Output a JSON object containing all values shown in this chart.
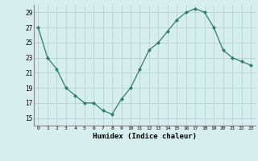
{
  "x": [
    0,
    1,
    2,
    3,
    4,
    5,
    6,
    7,
    8,
    9,
    10,
    11,
    12,
    13,
    14,
    15,
    16,
    17,
    18,
    19,
    20,
    21,
    22,
    23
  ],
  "y": [
    27,
    23,
    21.5,
    19,
    18,
    17,
    17,
    16,
    15.5,
    17.5,
    19,
    21.5,
    24,
    25,
    26.5,
    28,
    29,
    29.5,
    29,
    27,
    24,
    23,
    22.5,
    22
  ],
  "line_color": "#2e7d6e",
  "marker": "D",
  "marker_size": 2.0,
  "bg_color": "#d6eeee",
  "grid_color": "#b0cccc",
  "xlabel": "Humidex (Indice chaleur)",
  "ylim": [
    14,
    30
  ],
  "yticks": [
    15,
    17,
    19,
    21,
    23,
    25,
    27,
    29
  ],
  "xlim": [
    -0.5,
    23.5
  ],
  "xticks": [
    0,
    1,
    2,
    3,
    4,
    5,
    6,
    7,
    8,
    9,
    10,
    11,
    12,
    13,
    14,
    15,
    16,
    17,
    18,
    19,
    20,
    21,
    22,
    23
  ]
}
